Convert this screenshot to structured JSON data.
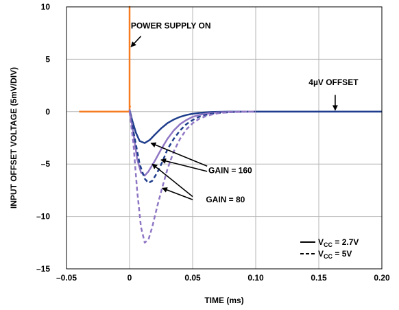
{
  "chart_data": {
    "type": "line",
    "title": "",
    "xlabel": "TIME (ms)",
    "ylabel": "INPUT OFFSET VOLTAGE (5mV/DIV)",
    "xlim": [
      -0.05,
      0.2
    ],
    "ylim": [
      -15,
      10
    ],
    "grid": true,
    "x_ticks": [
      -0.05,
      0,
      0.05,
      0.1,
      0.15,
      0.2
    ],
    "x_tick_labels": [
      "–0.05",
      "0",
      "0.05",
      "0.10",
      "0.15",
      "0.20"
    ],
    "y_ticks": [
      -15,
      -10,
      -5,
      0,
      5,
      10
    ],
    "y_tick_labels": [
      "–15",
      "–10",
      "–5",
      "0",
      "5",
      "10"
    ],
    "series": [
      {
        "color": "#f57c20",
        "style": "solid",
        "x": [
          -0.04,
          0,
          0,
          0,
          0.001
        ],
        "y": [
          0,
          0,
          10,
          0.5,
          0.5
        ]
      },
      {
        "color": "#1f3d8c",
        "style": "solid",
        "x": [
          0,
          0.002,
          0.005,
          0.008,
          0.012,
          0.016,
          0.02,
          0.025,
          0.03,
          0.035,
          0.04,
          0.045,
          0.05,
          0.055,
          0.06,
          0.065,
          0.07,
          0.08,
          0.1,
          0.12,
          0.14,
          0.16,
          0.18,
          0.2
        ],
        "y": [
          0.2,
          -0.8,
          -2.0,
          -2.8,
          -3.0,
          -2.7,
          -2.2,
          -1.6,
          -1.1,
          -0.75,
          -0.5,
          -0.32,
          -0.2,
          -0.12,
          -0.07,
          -0.04,
          -0.02,
          0.0,
          0.0,
          0.0,
          0.0,
          0.0,
          0.0,
          0.0
        ]
      },
      {
        "color": "#8f76c4",
        "style": "solid",
        "x": [
          0,
          0.003,
          0.006,
          0.009,
          0.012,
          0.015,
          0.02,
          0.025,
          0.03,
          0.035,
          0.04,
          0.045,
          0.05,
          0.055,
          0.06,
          0.065,
          0.07,
          0.08,
          0.1
        ],
        "y": [
          0.2,
          -2.0,
          -4.5,
          -5.8,
          -6.1,
          -5.7,
          -4.7,
          -3.6,
          -2.6,
          -1.8,
          -1.2,
          -0.8,
          -0.5,
          -0.32,
          -0.2,
          -0.12,
          -0.07,
          -0.02,
          0.0
        ]
      },
      {
        "color": "#1f3d8c",
        "style": "dashed",
        "x": [
          0,
          0.004,
          0.008,
          0.012,
          0.015,
          0.018,
          0.022,
          0.026,
          0.03,
          0.035,
          0.04,
          0.045,
          0.05,
          0.055,
          0.06,
          0.065,
          0.07,
          0.08,
          0.09,
          0.1,
          0.12,
          0.14,
          0.16,
          0.18,
          0.2
        ],
        "y": [
          0,
          -2.5,
          -5.0,
          -6.4,
          -6.8,
          -6.6,
          -5.8,
          -4.8,
          -3.6,
          -2.6,
          -1.8,
          -1.2,
          -0.8,
          -0.5,
          -0.32,
          -0.2,
          -0.12,
          -0.05,
          0.0,
          0.0,
          0.0,
          0.0,
          0.0,
          0.0,
          0.0
        ]
      },
      {
        "color": "#8f76c4",
        "style": "dashed",
        "x": [
          0,
          0.003,
          0.006,
          0.009,
          0.012,
          0.015,
          0.018,
          0.022,
          0.026,
          0.03,
          0.035,
          0.04,
          0.045,
          0.05,
          0.055,
          0.06,
          0.065,
          0.07,
          0.075,
          0.08,
          0.09,
          0.1
        ],
        "y": [
          0,
          -3.0,
          -7.5,
          -11.0,
          -12.5,
          -12.2,
          -11.0,
          -9.0,
          -7.2,
          -5.5,
          -3.8,
          -2.6,
          -1.7,
          -1.1,
          -0.7,
          -0.45,
          -0.28,
          -0.16,
          -0.09,
          -0.05,
          -0.01,
          0.0
        ]
      }
    ],
    "annotations": [
      {
        "text": "POWER SUPPLY ON",
        "x": 0.001,
        "y": 8.2
      },
      {
        "text": "4µV OFFSET",
        "x": 0.142,
        "y": 2.8
      },
      {
        "text": "GAIN = 160",
        "x": 0.0625,
        "y": -5.6
      },
      {
        "text": "GAIN = 80",
        "x": 0.0605,
        "y": -8.4
      }
    ],
    "legend": {
      "position": "bottom-right",
      "entries": [
        {
          "label": "V",
          "subscript": "CC",
          "value": " = 2.7V",
          "style": "solid"
        },
        {
          "label": "V",
          "subscript": "CC",
          "value": " = 5V",
          "style": "dashed"
        }
      ]
    }
  }
}
